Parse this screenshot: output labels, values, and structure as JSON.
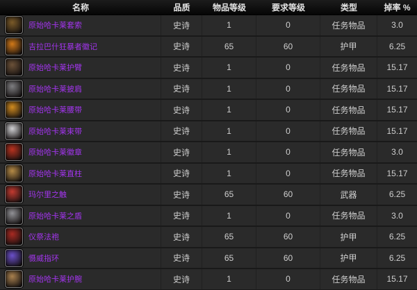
{
  "colors": {
    "epic_quality": "#a335ee",
    "header_bg": "#0d0d0d",
    "row_bg": "#2a2a2a",
    "cell_text": "#cfcfcf"
  },
  "table": {
    "columns": [
      {
        "key": "name",
        "label": "名称"
      },
      {
        "key": "quality",
        "label": "品质"
      },
      {
        "key": "item_level",
        "label": "物品等级"
      },
      {
        "key": "req_level",
        "label": "要求等级"
      },
      {
        "key": "type",
        "label": "类型"
      },
      {
        "key": "drop_rate",
        "label": "掉率 %"
      }
    ],
    "rows": [
      {
        "name": "原始哈卡莱套索",
        "icon": "lasso-coil-icon",
        "icon_color": "#7a5a28",
        "quality": "史诗",
        "item_level": "1",
        "req_level": "0",
        "type": "任务物品",
        "drop_rate": "3.0"
      },
      {
        "name": "吉拉巴什狂暴者徽记",
        "icon": "ring-gem-icon",
        "icon_color": "#d07818",
        "quality": "史诗",
        "item_level": "65",
        "req_level": "60",
        "type": "护甲",
        "drop_rate": "6.25"
      },
      {
        "name": "原始哈卡莱护臂",
        "icon": "claw-armsplint-icon",
        "icon_color": "#6b5138",
        "quality": "史诗",
        "item_level": "1",
        "req_level": "0",
        "type": "任务物品",
        "drop_rate": "15.17"
      },
      {
        "name": "原始哈卡莱披肩",
        "icon": "shawl-shoulder-icon",
        "icon_color": "#7d7d80",
        "quality": "史诗",
        "item_level": "1",
        "req_level": "0",
        "type": "任务物品",
        "drop_rate": "15.17"
      },
      {
        "name": "原始哈卡莱腰带",
        "icon": "gold-belt-icon",
        "icon_color": "#cf8a1f",
        "quality": "史诗",
        "item_level": "1",
        "req_level": "0",
        "type": "任务物品",
        "drop_rate": "15.17"
      },
      {
        "name": "原始哈卡莱束带",
        "icon": "skull-sash-icon",
        "icon_color": "#cfcfd2",
        "quality": "史诗",
        "item_level": "1",
        "req_level": "0",
        "type": "任务物品",
        "drop_rate": "15.17"
      },
      {
        "name": "原始哈卡莱徽章",
        "icon": "red-tabard-icon",
        "icon_color": "#b8321f",
        "quality": "史诗",
        "item_level": "1",
        "req_level": "0",
        "type": "任务物品",
        "drop_rate": "3.0"
      },
      {
        "name": "原始哈卡莱直柱",
        "icon": "bronze-stanchion-icon",
        "icon_color": "#b48a46",
        "quality": "史诗",
        "item_level": "1",
        "req_level": "0",
        "type": "任务物品",
        "drop_rate": "15.17"
      },
      {
        "name": "玛尔里之触",
        "icon": "red-hand-wand-icon",
        "icon_color": "#c23a30",
        "quality": "史诗",
        "item_level": "65",
        "req_level": "60",
        "type": "武器",
        "drop_rate": "6.25"
      },
      {
        "name": "原始哈卡莱之盾",
        "icon": "grey-aegis-icon",
        "icon_color": "#909095",
        "quality": "史诗",
        "item_level": "1",
        "req_level": "0",
        "type": "任务物品",
        "drop_rate": "3.0"
      },
      {
        "name": "仪祭法袍",
        "icon": "red-robe-icon",
        "icon_color": "#a82a22",
        "quality": "史诗",
        "item_level": "65",
        "req_level": "60",
        "type": "护甲",
        "drop_rate": "6.25"
      },
      {
        "name": "慑威指环",
        "icon": "purple-ring-icon",
        "icon_color": "#6a4fc8",
        "quality": "史诗",
        "item_level": "65",
        "req_level": "60",
        "type": "护甲",
        "drop_rate": "6.25"
      },
      {
        "name": "原始哈卡莱护腕",
        "icon": "bronze-bracer-icon",
        "icon_color": "#a8804e",
        "quality": "史诗",
        "item_level": "1",
        "req_level": "0",
        "type": "任务物品",
        "drop_rate": "15.17"
      }
    ]
  }
}
